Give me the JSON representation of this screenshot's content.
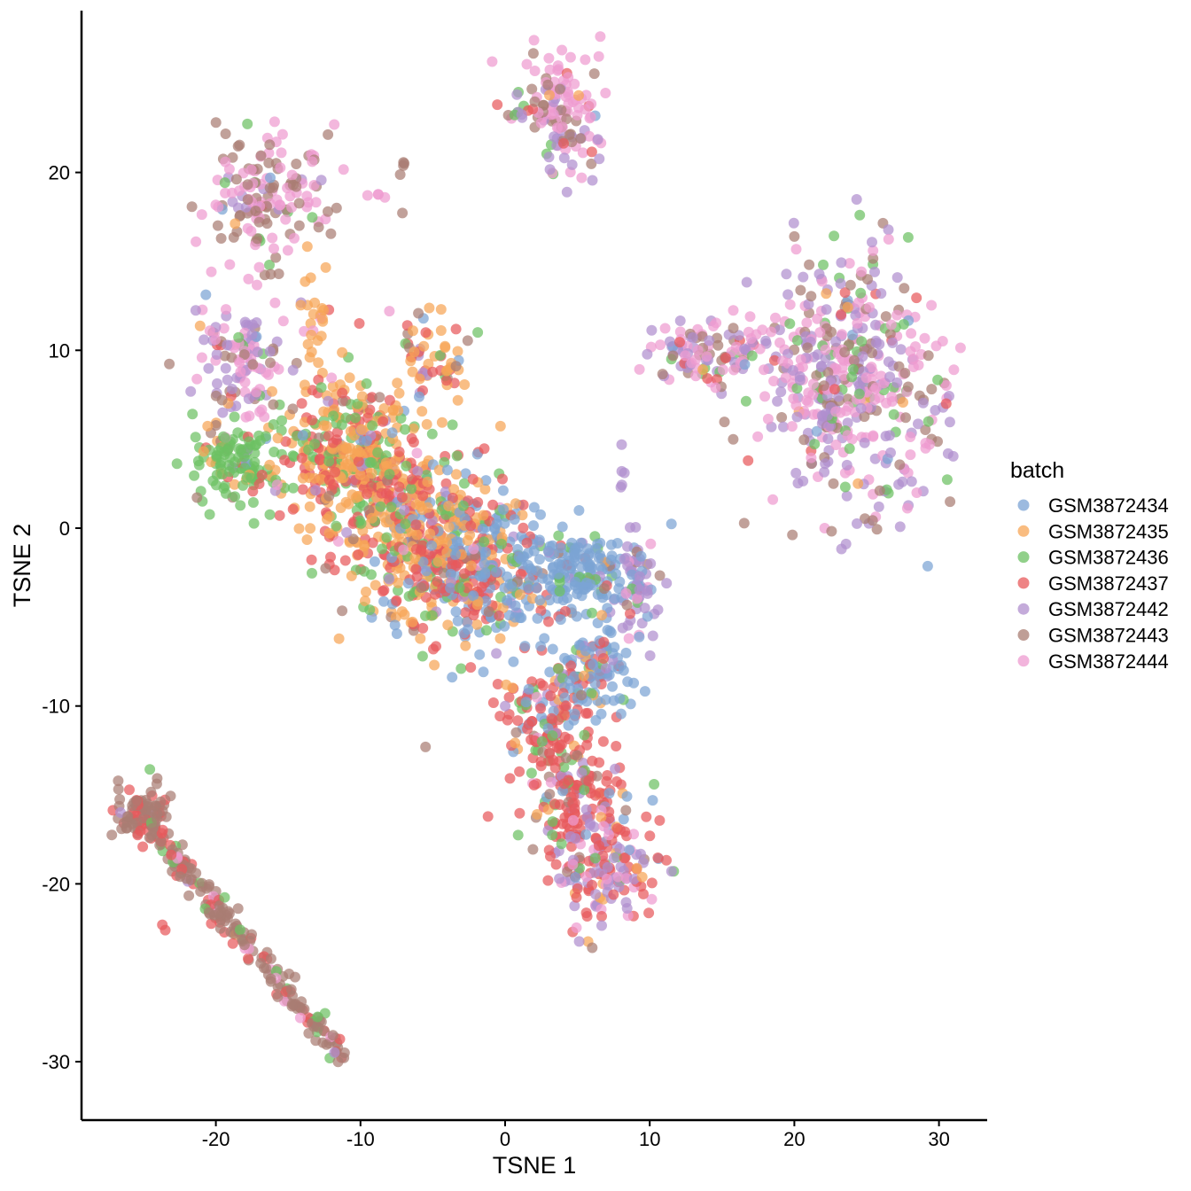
{
  "chart_data": {
    "type": "scatter",
    "title": "",
    "xlabel": "TSNE 1",
    "ylabel": "TSNE 2",
    "xlim": [
      -29,
      33.5
    ],
    "ylim": [
      -33,
      29
    ],
    "x_ticks": [
      -20,
      -10,
      0,
      10,
      20,
      30
    ],
    "y_ticks": [
      -30,
      -20,
      -10,
      0,
      10,
      20
    ],
    "grid": false,
    "legend": {
      "title": "batch",
      "position": "right",
      "entries": [
        {
          "name": "GSM3872434",
          "color": "#7BA3D4"
        },
        {
          "name": "GSM3872435",
          "color": "#F7A556"
        },
        {
          "name": "GSM3872436",
          "color": "#6CC063"
        },
        {
          "name": "GSM3872437",
          "color": "#E8595B"
        },
        {
          "name": "GSM3872442",
          "color": "#B08FCE"
        },
        {
          "name": "GSM3872443",
          "color": "#A97D73"
        },
        {
          "name": "GSM3872444",
          "color": "#EE9BD0"
        }
      ]
    },
    "clusters": [
      {
        "cx": -16.5,
        "cy": 18.7,
        "sx": 2.2,
        "sy": 1.8,
        "n": 150,
        "w": [
          0.01,
          0.02,
          0.06,
          0.02,
          0.08,
          0.42,
          0.39
        ]
      },
      {
        "cx": 4.0,
        "cy": 24.2,
        "sx": 1.4,
        "sy": 1.3,
        "n": 85,
        "w": [
          0.01,
          0.02,
          0.04,
          0.02,
          0.08,
          0.22,
          0.61
        ]
      },
      {
        "cx": 4.8,
        "cy": 21.2,
        "sx": 1.0,
        "sy": 1.0,
        "n": 35,
        "w": [
          0.01,
          0.02,
          0.04,
          0.02,
          0.3,
          0.3,
          0.31
        ]
      },
      {
        "cx": 1.5,
        "cy": 23.6,
        "sx": 0.9,
        "sy": 0.4,
        "n": 14,
        "w": [
          0,
          0.02,
          0.25,
          0.12,
          0.11,
          0.25,
          0.25
        ]
      },
      {
        "cx": 24.0,
        "cy": 8.5,
        "sx": 3.3,
        "sy": 3.6,
        "n": 460,
        "w": [
          0.01,
          0.01,
          0.09,
          0.03,
          0.31,
          0.19,
          0.36
        ]
      },
      {
        "cx": 14.3,
        "cy": 9.8,
        "sx": 2.1,
        "sy": 1.0,
        "n": 110,
        "w": [
          0.01,
          0.01,
          0.09,
          0.06,
          0.28,
          0.13,
          0.42
        ]
      },
      {
        "cx": -18.5,
        "cy": 9.6,
        "sx": 1.9,
        "sy": 2.0,
        "n": 130,
        "w": [
          0.01,
          0.03,
          0.04,
          0.04,
          0.32,
          0.16,
          0.4
        ]
      },
      {
        "cx": -13.2,
        "cy": 12.0,
        "sx": 0.6,
        "sy": 1.3,
        "n": 25,
        "w": [
          0,
          0.92,
          0,
          0,
          0,
          0,
          0.08
        ]
      },
      {
        "cx": -18.8,
        "cy": 3.9,
        "sx": 1.6,
        "sy": 1.2,
        "n": 120,
        "w": [
          0.01,
          0.04,
          0.86,
          0.03,
          0.03,
          0.02,
          0.01
        ]
      },
      {
        "cx": -10.5,
        "cy": 4.0,
        "sx": 2.6,
        "sy": 2.3,
        "n": 420,
        "w": [
          0.03,
          0.46,
          0.17,
          0.27,
          0.03,
          0.03,
          0.01
        ]
      },
      {
        "cx": -6.0,
        "cy": -1.0,
        "sx": 2.6,
        "sy": 2.5,
        "n": 380,
        "w": [
          0.08,
          0.37,
          0.14,
          0.33,
          0.04,
          0.03,
          0.01
        ]
      },
      {
        "cx": -5.0,
        "cy": 9.5,
        "sx": 1.4,
        "sy": 1.4,
        "n": 60,
        "w": [
          0.06,
          0.46,
          0.12,
          0.2,
          0.04,
          0.12,
          0
        ]
      },
      {
        "cx": -1.0,
        "cy": -2.5,
        "sx": 2.2,
        "sy": 2.4,
        "n": 300,
        "w": [
          0.52,
          0.11,
          0.09,
          0.21,
          0.04,
          0.02,
          0.01
        ]
      },
      {
        "cx": 5.5,
        "cy": -2.4,
        "sx": 1.8,
        "sy": 1.1,
        "n": 150,
        "w": [
          0.82,
          0.02,
          0.07,
          0.05,
          0.03,
          0.01,
          0
        ]
      },
      {
        "cx": 9.3,
        "cy": -3.5,
        "sx": 0.9,
        "sy": 1.6,
        "n": 60,
        "w": [
          0.05,
          0,
          0.04,
          0.04,
          0.67,
          0.1,
          0.1
        ]
      },
      {
        "cx": 6.0,
        "cy": -8.0,
        "sx": 1.5,
        "sy": 1.6,
        "n": 120,
        "w": [
          0.56,
          0.05,
          0.13,
          0.18,
          0.05,
          0.02,
          0.01
        ]
      },
      {
        "cx": 2.5,
        "cy": -10.5,
        "sx": 1.7,
        "sy": 1.6,
        "n": 100,
        "w": [
          0.09,
          0.05,
          0.13,
          0.56,
          0.09,
          0.05,
          0.03
        ]
      },
      {
        "cx": 4.5,
        "cy": -14.5,
        "sx": 1.8,
        "sy": 1.7,
        "n": 140,
        "w": [
          0.04,
          0.04,
          0.09,
          0.59,
          0.12,
          0.1,
          0.02
        ]
      },
      {
        "cx": 6.8,
        "cy": -19.0,
        "sx": 1.8,
        "sy": 2.1,
        "n": 170,
        "w": [
          0.07,
          0.04,
          0.06,
          0.33,
          0.33,
          0.02,
          0.15
        ]
      },
      {
        "cx": -25.0,
        "cy": -16.0,
        "sx": 0.9,
        "sy": 0.8,
        "n": 90,
        "w": [
          0,
          0,
          0.03,
          0.28,
          0.01,
          0.68,
          0
        ]
      },
      {
        "cx": 8.1,
        "cy": 3.2,
        "sx": 0.1,
        "sy": 0.6,
        "n": 5,
        "w": [
          0,
          0,
          0,
          0,
          1,
          0,
          0
        ]
      },
      {
        "cx": -7.0,
        "cy": 19.8,
        "sx": 0.12,
        "sy": 0.7,
        "n": 5,
        "w": [
          0,
          0,
          0,
          0,
          0,
          1,
          0
        ]
      },
      {
        "cx": -8.9,
        "cy": 18.7,
        "sx": 0.3,
        "sy": 0.05,
        "n": 4,
        "w": [
          0,
          0,
          0,
          0,
          0,
          0,
          1
        ]
      }
    ],
    "segments": [
      {
        "x0": -24.5,
        "y0": -17.0,
        "x1": -11.0,
        "y1": -29.9,
        "n": 200,
        "spread": 0.45,
        "w": [
          0,
          0.01,
          0.08,
          0.2,
          0.01,
          0.64,
          0.06
        ]
      }
    ],
    "extra_points": [
      {
        "x": -5.5,
        "y": -12.3,
        "batch": 5
      },
      {
        "x": -23.7,
        "y": -22.3,
        "batch": 3
      },
      {
        "x": -23.5,
        "y": -22.6,
        "batch": 3
      },
      {
        "x": -8.0,
        "y": 12.2,
        "batch": 6
      },
      {
        "x": -16.3,
        "y": 14.8,
        "batch": 2
      },
      {
        "x": 30.5,
        "y": 7.0,
        "batch": 3
      },
      {
        "x": 16.8,
        "y": 3.8,
        "batch": 3
      },
      {
        "x": 22.7,
        "y": 2.5,
        "batch": 5
      },
      {
        "x": 24.4,
        "y": 2.5,
        "batch": 1
      },
      {
        "x": 20.0,
        "y": 16.4,
        "batch": 5
      },
      {
        "x": 10.2,
        "y": -15.3,
        "batch": 0
      },
      {
        "x": 10.3,
        "y": -14.4,
        "batch": 2
      }
    ]
  }
}
